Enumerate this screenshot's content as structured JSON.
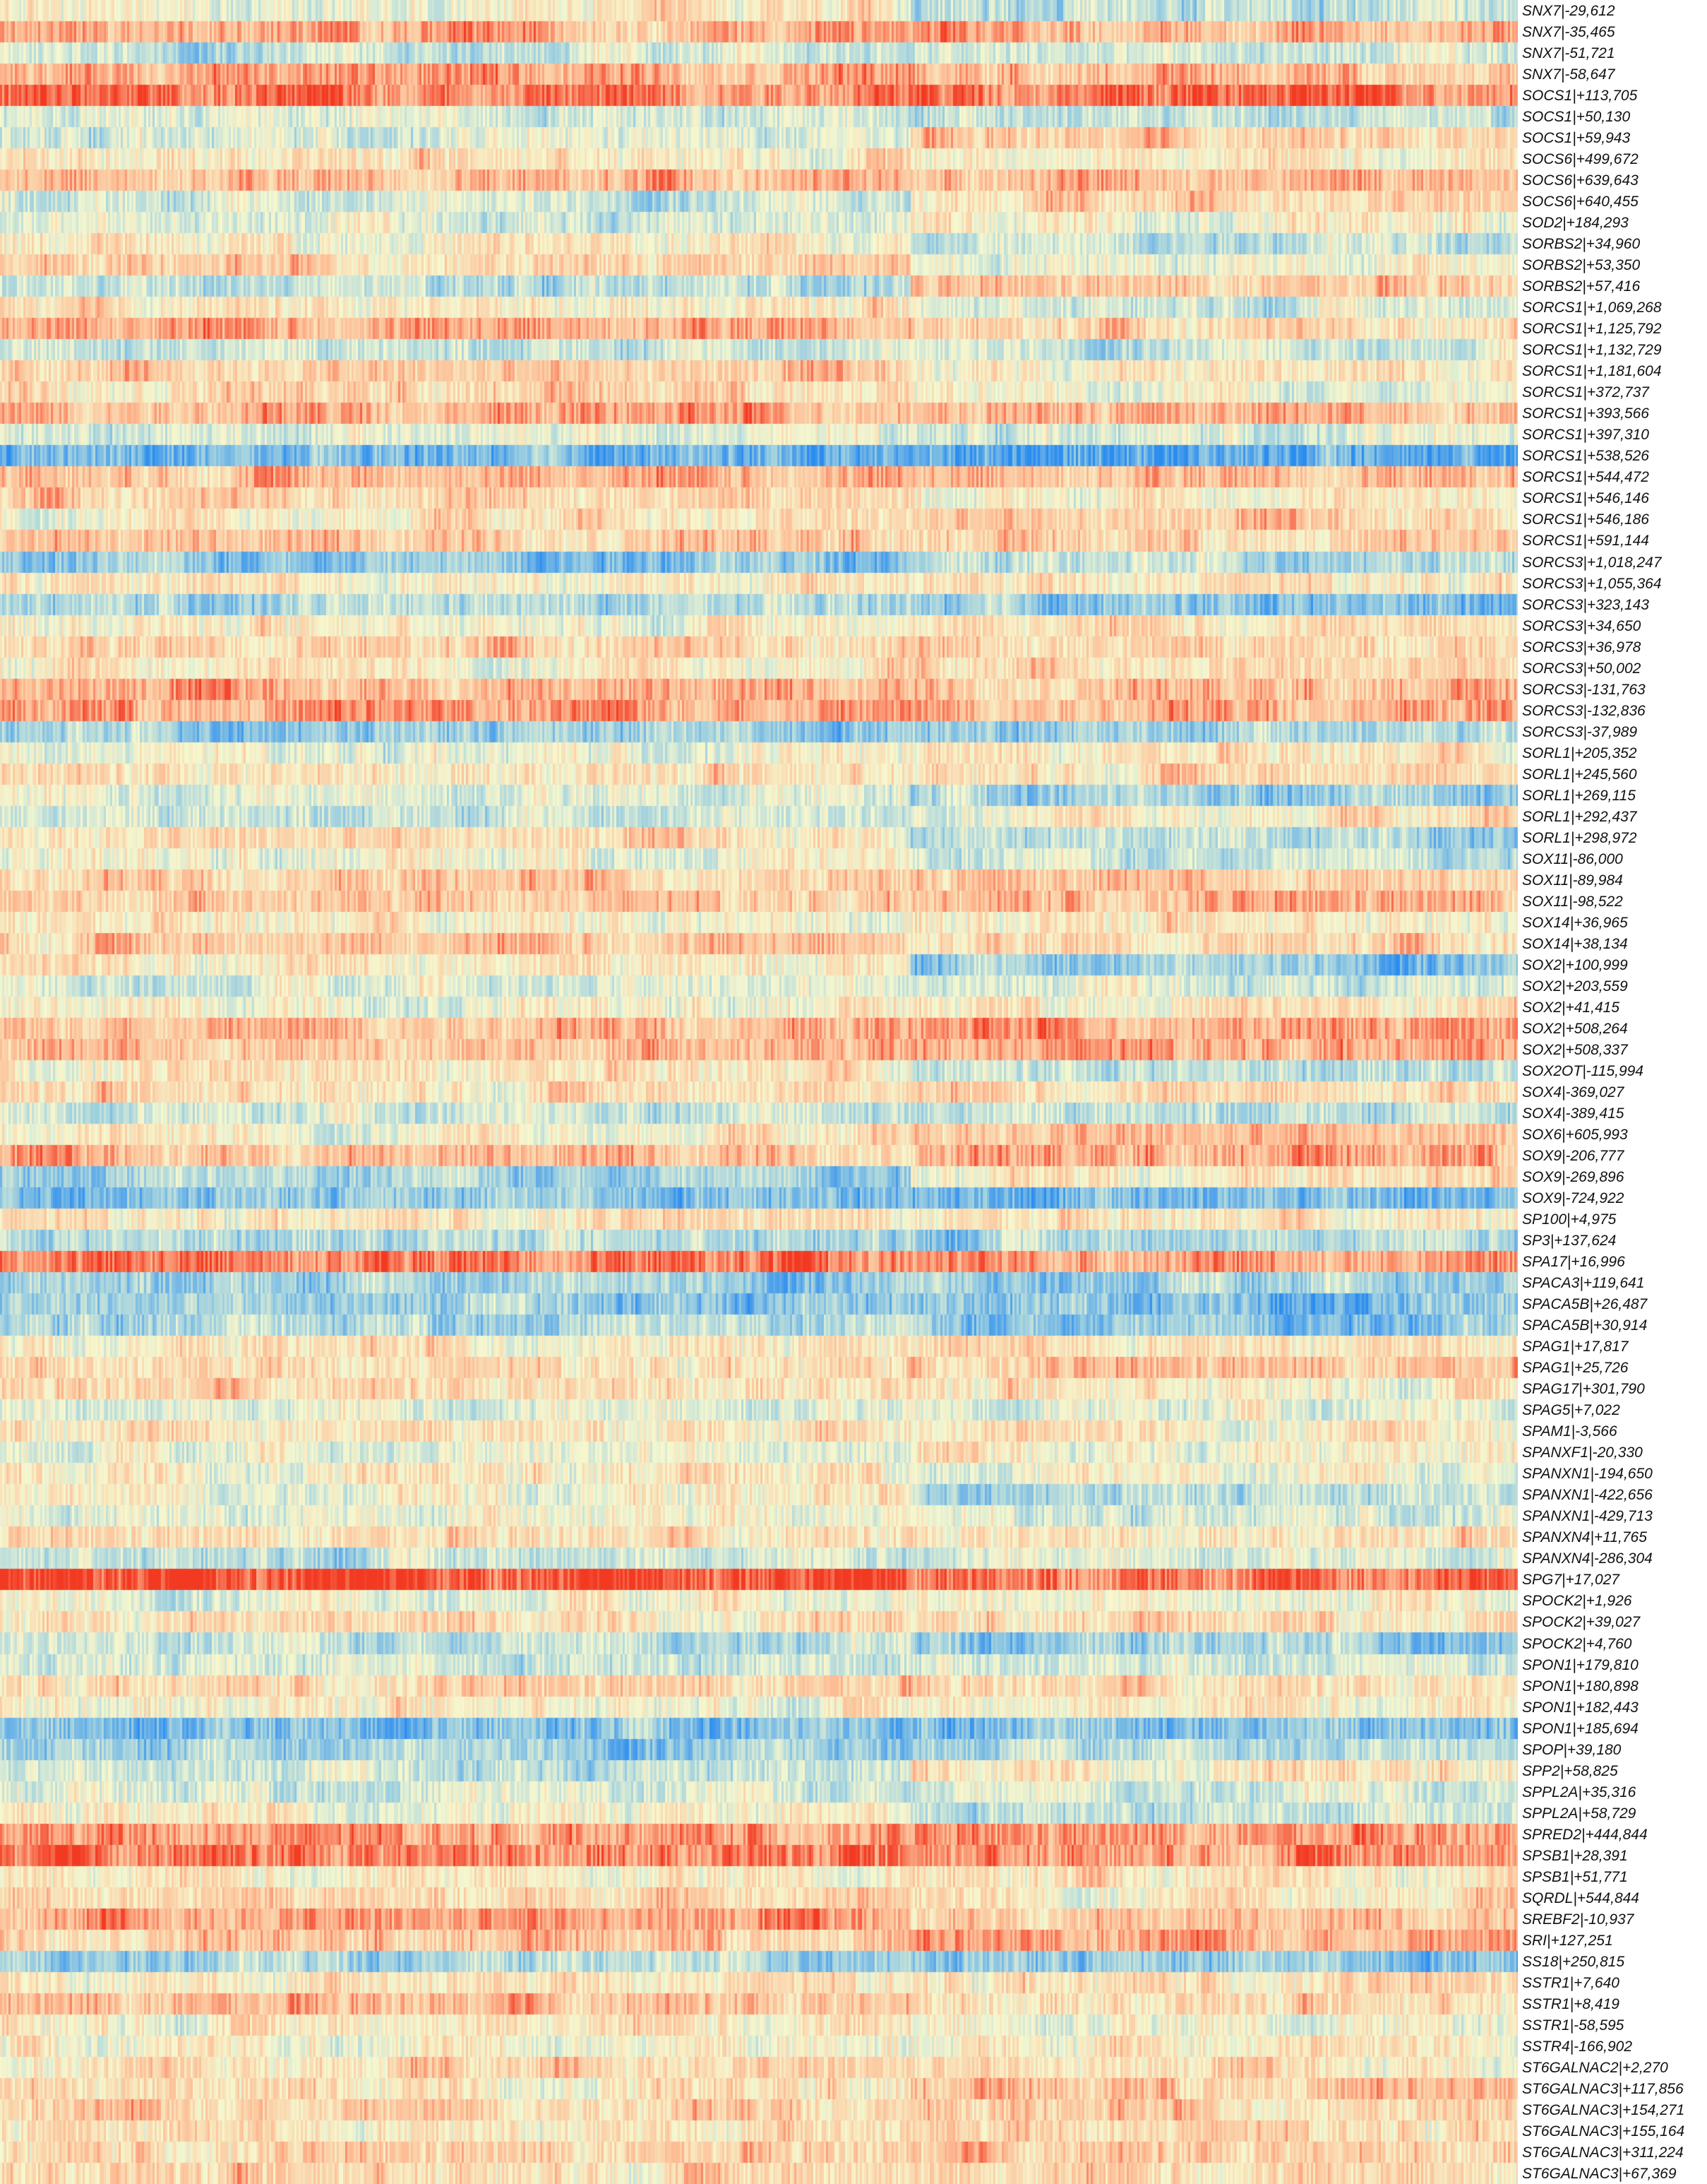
{
  "chart_data": {
    "type": "heatmap",
    "title": "",
    "xlabel": "",
    "ylabel": "",
    "colormap": [
      "#2b8cef",
      "#9dcfe0",
      "#f6f8cf",
      "#fdbc94",
      "#f23a22"
    ],
    "value_range": [
      -2,
      2
    ],
    "column_groups": [
      {
        "name": "",
        "fraction": 0.6
      },
      {
        "name": "",
        "fraction": 0.4
      }
    ],
    "rows": [
      "SNX7|-29,612",
      "SNX7|-35,465",
      "SNX7|-51,721",
      "SNX7|-58,647",
      "SOCS1|+113,705",
      "SOCS1|+50,130",
      "SOCS1|+59,943",
      "SOCS6|+499,672",
      "SOCS6|+639,643",
      "SOCS6|+640,455",
      "SOD2|+184,293",
      "SORBS2|+34,960",
      "SORBS2|+53,350",
      "SORBS2|+57,416",
      "SORCS1|+1,069,268",
      "SORCS1|+1,125,792",
      "SORCS1|+1,132,729",
      "SORCS1|+1,181,604",
      "SORCS1|+372,737",
      "SORCS1|+393,566",
      "SORCS1|+397,310",
      "SORCS1|+538,526",
      "SORCS1|+544,472",
      "SORCS1|+546,146",
      "SORCS1|+546,186",
      "SORCS1|+591,144",
      "SORCS3|+1,018,247",
      "SORCS3|+1,055,364",
      "SORCS3|+323,143",
      "SORCS3|+34,650",
      "SORCS3|+36,978",
      "SORCS3|+50,002",
      "SORCS3|-131,763",
      "SORCS3|-132,836",
      "SORCS3|-37,989",
      "SORL1|+205,352",
      "SORL1|+245,560",
      "SORL1|+269,115",
      "SORL1|+292,437",
      "SORL1|+298,972",
      "SOX11|-86,000",
      "SOX11|-89,984",
      "SOX11|-98,522",
      "SOX14|+36,965",
      "SOX14|+38,134",
      "SOX2|+100,999",
      "SOX2|+203,559",
      "SOX2|+41,415",
      "SOX2|+508,264",
      "SOX2|+508,337",
      "SOX2OT|-115,994",
      "SOX4|-369,027",
      "SOX4|-389,415",
      "SOX6|+605,993",
      "SOX9|-206,777",
      "SOX9|-269,896",
      "SOX9|-724,922",
      "SP100|+4,975",
      "SP3|+137,624",
      "SPA17|+16,996",
      "SPACA3|+119,641",
      "SPACA5B|+26,487",
      "SPACA5B|+30,914",
      "SPAG1|+17,817",
      "SPAG1|+25,726",
      "SPAG17|+301,790",
      "SPAG5|+7,022",
      "SPAM1|-3,566",
      "SPANXF1|-20,330",
      "SPANXN1|-194,650",
      "SPANXN1|-422,656",
      "SPANXN1|-429,713",
      "SPANXN4|+11,765",
      "SPANXN4|-286,304",
      "SPG7|+17,027",
      "SPOCK2|+1,926",
      "SPOCK2|+39,027",
      "SPOCK2|+4,760",
      "SPON1|+179,810",
      "SPON1|+180,898",
      "SPON1|+182,443",
      "SPON1|+185,694",
      "SPOP|+39,180",
      "SPP2|+58,825",
      "SPPL2A|+35,316",
      "SPPL2A|+58,729",
      "SPRED2|+444,844",
      "SPSB1|+28,391",
      "SPSB1|+51,771",
      "SQRDL|+544,844",
      "SREBF2|-10,937",
      "SRI|+127,251",
      "SS18|+250,815",
      "SSTR1|+7,640",
      "SSTR1|+8,419",
      "SSTR1|-58,595",
      "SSTR4|-166,902",
      "ST6GALNAC2|+2,270",
      "ST6GALNAC3|+117,856",
      "ST6GALNAC3|+154,271",
      "ST6GALNAC3|+155,164",
      "ST6GALNAC3|+311,224",
      "ST6GALNAC3|+67,369"
    ],
    "row_profiles": [
      [
        0.1,
        -0.5
      ],
      [
        1.1,
        1.0
      ],
      [
        -0.4,
        -0.5
      ],
      [
        1.2,
        0.9
      ],
      [
        1.5,
        1.6
      ],
      [
        -0.2,
        -0.6
      ],
      [
        -0.3,
        0.6
      ],
      [
        0.4,
        0.2
      ],
      [
        0.9,
        1.0
      ],
      [
        -0.3,
        0.5
      ],
      [
        -0.3,
        0.2
      ],
      [
        0.2,
        -0.4
      ],
      [
        0.6,
        0.1
      ],
      [
        -0.6,
        0.6
      ],
      [
        0.3,
        -0.2
      ],
      [
        1.1,
        0.5
      ],
      [
        -0.4,
        -0.3
      ],
      [
        0.6,
        0.3
      ],
      [
        0.6,
        -0.1
      ],
      [
        1.1,
        1.0
      ],
      [
        -0.2,
        -0.3
      ],
      [
        -1.4,
        -1.5
      ],
      [
        1.0,
        0.9
      ],
      [
        0.6,
        0.2
      ],
      [
        0.3,
        0.6
      ],
      [
        0.8,
        0.6
      ],
      [
        -1.0,
        -0.6
      ],
      [
        0.3,
        0.3
      ],
      [
        -0.8,
        -1.1
      ],
      [
        0.2,
        0.4
      ],
      [
        0.6,
        0.6
      ],
      [
        0.3,
        0.4
      ],
      [
        1.0,
        0.9
      ],
      [
        1.2,
        1.1
      ],
      [
        -0.9,
        -0.8
      ],
      [
        -0.1,
        0.2
      ],
      [
        0.4,
        0.6
      ],
      [
        -0.2,
        -0.9
      ],
      [
        -0.4,
        0.3
      ],
      [
        0.4,
        -0.6
      ],
      [
        0.0,
        -0.4
      ],
      [
        0.7,
        0.8
      ],
      [
        0.7,
        0.9
      ],
      [
        0.1,
        0.3
      ],
      [
        0.8,
        0.5
      ],
      [
        0.3,
        -0.9
      ],
      [
        -0.3,
        -0.3
      ],
      [
        0.1,
        0.3
      ],
      [
        1.0,
        1.2
      ],
      [
        0.9,
        1.1
      ],
      [
        0.2,
        -0.5
      ],
      [
        0.5,
        0.5
      ],
      [
        -0.4,
        -0.5
      ],
      [
        0.2,
        0.8
      ],
      [
        0.9,
        1.1
      ],
      [
        -0.8,
        0.3
      ],
      [
        -1.0,
        -1.3
      ],
      [
        0.3,
        0.2
      ],
      [
        -0.6,
        -0.7
      ],
      [
        1.5,
        1.2
      ],
      [
        -0.8,
        -0.9
      ],
      [
        -1.0,
        -1.1
      ],
      [
        -0.7,
        -1.0
      ],
      [
        0.3,
        0.5
      ],
      [
        0.4,
        0.7
      ],
      [
        0.5,
        0.3
      ],
      [
        -0.2,
        -0.2
      ],
      [
        0.4,
        0.4
      ],
      [
        -0.2,
        0.1
      ],
      [
        0.3,
        0.0
      ],
      [
        0.1,
        -0.6
      ],
      [
        0.0,
        -0.3
      ],
      [
        0.3,
        0.4
      ],
      [
        -0.4,
        -0.2
      ],
      [
        1.9,
        1.6
      ],
      [
        0.0,
        -0.1
      ],
      [
        0.5,
        0.5
      ],
      [
        -0.5,
        -0.9
      ],
      [
        -0.3,
        -0.4
      ],
      [
        0.5,
        0.4
      ],
      [
        0.2,
        0.2
      ],
      [
        -1.2,
        -1.1
      ],
      [
        -0.8,
        -0.7
      ],
      [
        -0.5,
        0.4
      ],
      [
        -0.3,
        -0.2
      ],
      [
        0.1,
        -0.4
      ],
      [
        1.2,
        1.1
      ],
      [
        1.5,
        1.4
      ],
      [
        0.2,
        0.3
      ],
      [
        0.6,
        0.4
      ],
      [
        1.1,
        0.8
      ],
      [
        0.8,
        1.1
      ],
      [
        -0.7,
        -1.0
      ],
      [
        0.3,
        0.4
      ],
      [
        0.8,
        0.5
      ],
      [
        0.3,
        0.0
      ],
      [
        0.1,
        0.3
      ],
      [
        0.5,
        0.3
      ],
      [
        0.4,
        0.8
      ],
      [
        0.7,
        0.6
      ],
      [
        0.4,
        0.5
      ],
      [
        0.5,
        0.7
      ],
      [
        0.6,
        0.5
      ]
    ]
  }
}
